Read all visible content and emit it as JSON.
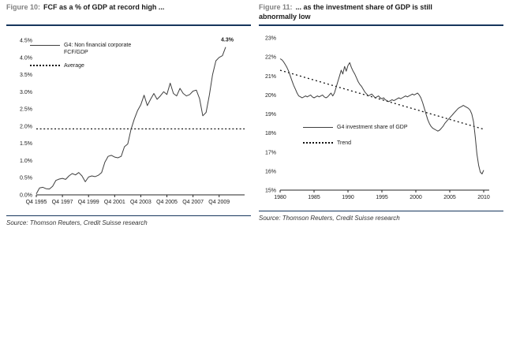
{
  "colors": {
    "rule_navy": "#17365d",
    "caption_prefix_gray": "#808080",
    "caption_text": "#1a1a1a",
    "series_line": "#3f3f3f",
    "dashed_line": "#141414",
    "source_text": "#333333"
  },
  "figures": [
    {
      "caption_prefix": "Figure 10:",
      "caption_text": "FCF as a % of GDP at record high ...",
      "legend": [
        {
          "style": "solid",
          "label": "G4: Non financial corporate\nFCF/GDP"
        },
        {
          "style": "dashed",
          "label": "Average"
        }
      ],
      "annotation": "4.3%",
      "source": "Source: Thomson Reuters, Credit Suisse research"
    },
    {
      "caption_prefix": "Figure 11:",
      "caption_text": "... as the investment share of GDP is still\nabnormally low",
      "legend": [
        {
          "style": "solid",
          "label": "G4 investment share of GDP"
        },
        {
          "style": "dashed",
          "label": "Trend"
        }
      ],
      "source": "Source: Thomson Reuters, Credit Suisse research"
    }
  ],
  "chart_data": [
    {
      "type": "line",
      "title": "FCF as a % of GDP at record high",
      "xlabel": "",
      "ylabel": "",
      "grid": false,
      "legend_position": "top-left-inside",
      "ylim": [
        0,
        4.5
      ],
      "y_ticks": [
        0,
        0.5,
        1.0,
        1.5,
        2.0,
        2.5,
        3.0,
        3.5,
        4.0,
        4.5
      ],
      "y_tick_labels": [
        "0.0%",
        "0.5%",
        "1.0%",
        "1.5%",
        "2.0%",
        "2.5%",
        "3.0%",
        "3.5%",
        "4.0%",
        "4.5%"
      ],
      "x_tick_labels": [
        "Q4 1995",
        "Q4 1997",
        "Q4 1999",
        "Q4 2001",
        "Q4 2003",
        "Q4 2005",
        "Q4 2007",
        "Q4 2009"
      ],
      "x_tick_indices": [
        0,
        8,
        16,
        24,
        32,
        40,
        48,
        56
      ],
      "x_frequency": "quarterly",
      "series": [
        {
          "name": "G4: Non financial corporate FCF/GDP",
          "values": [
            0.03,
            0.2,
            0.22,
            0.18,
            0.17,
            0.25,
            0.42,
            0.46,
            0.48,
            0.45,
            0.55,
            0.62,
            0.58,
            0.65,
            0.55,
            0.38,
            0.52,
            0.55,
            0.53,
            0.57,
            0.65,
            0.95,
            1.12,
            1.15,
            1.1,
            1.08,
            1.12,
            1.4,
            1.48,
            1.9,
            2.2,
            2.45,
            2.62,
            2.9,
            2.6,
            2.78,
            2.95,
            2.78,
            2.88,
            3.0,
            2.92,
            3.25,
            2.95,
            2.88,
            3.1,
            2.95,
            2.88,
            2.92,
            3.02,
            3.05,
            2.8,
            2.3,
            2.4,
            2.9,
            3.5,
            3.9,
            4.0,
            4.05,
            4.3
          ]
        }
      ],
      "reference_lines": [
        {
          "name": "Average",
          "value": 1.92,
          "style": "dashed"
        }
      ],
      "annotation": {
        "text": "4.3%",
        "at_last_point": true
      }
    },
    {
      "type": "line",
      "title": "as the investment share of GDP is still abnormally low",
      "xlabel": "",
      "ylabel": "",
      "grid": false,
      "legend_position": "middle-left-inside",
      "ylim": [
        15,
        23
      ],
      "y_ticks": [
        15,
        16,
        17,
        18,
        19,
        20,
        21,
        22,
        23
      ],
      "y_tick_labels": [
        "15%",
        "16%",
        "17%",
        "18%",
        "19%",
        "20%",
        "21%",
        "22%",
        "23%"
      ],
      "x_tick_labels": [
        "1980",
        "1985",
        "1990",
        "1995",
        "2000",
        "2005",
        "2010"
      ],
      "x_tick_indices": [
        0,
        20,
        40,
        60,
        80,
        100,
        120
      ],
      "x_frequency": "quarterly",
      "series": [
        {
          "name": "G4 investment share of GDP",
          "values": [
            21.9,
            21.85,
            21.75,
            21.6,
            21.45,
            21.25,
            21.0,
            20.75,
            20.5,
            20.3,
            20.1,
            19.95,
            19.9,
            19.85,
            19.9,
            19.95,
            19.9,
            19.95,
            20.0,
            19.9,
            19.85,
            19.9,
            19.95,
            19.9,
            19.95,
            20.0,
            19.9,
            19.85,
            19.9,
            20.0,
            20.1,
            19.95,
            20.1,
            20.4,
            20.7,
            21.0,
            21.3,
            21.1,
            21.5,
            21.25,
            21.55,
            21.7,
            21.45,
            21.25,
            21.1,
            20.9,
            20.7,
            20.55,
            20.45,
            20.3,
            20.15,
            20.05,
            19.95,
            20.0,
            20.05,
            19.95,
            19.85,
            19.9,
            19.95,
            19.85,
            19.8,
            19.85,
            19.75,
            19.7,
            19.65,
            19.7,
            19.75,
            19.7,
            19.75,
            19.8,
            19.85,
            19.8,
            19.85,
            19.9,
            19.95,
            19.9,
            19.95,
            20.0,
            20.05,
            20.0,
            20.05,
            20.1,
            20.0,
            19.85,
            19.6,
            19.3,
            19.0,
            18.7,
            18.5,
            18.35,
            18.25,
            18.2,
            18.15,
            18.1,
            18.15,
            18.25,
            18.35,
            18.5,
            18.6,
            18.7,
            18.8,
            18.9,
            19.0,
            19.1,
            19.2,
            19.3,
            19.35,
            19.4,
            19.45,
            19.4,
            19.35,
            19.3,
            19.2,
            19.0,
            18.6,
            17.8,
            16.9,
            16.3,
            15.95,
            15.85,
            16.05
          ]
        }
      ],
      "trend_line": {
        "name": "Trend",
        "start_value": 21.3,
        "end_value": 18.2,
        "style": "dashed"
      }
    }
  ]
}
